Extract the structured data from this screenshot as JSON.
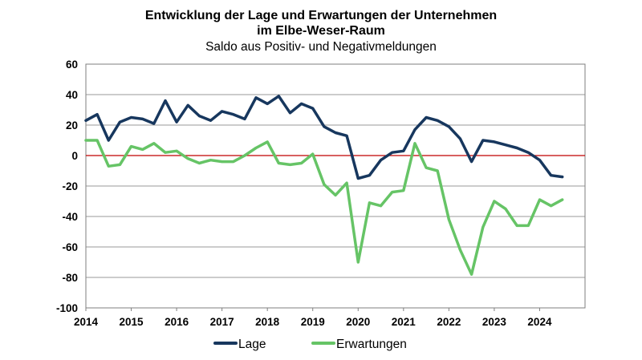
{
  "chart_data": {
    "type": "line",
    "title": "Entwicklung der Lage und Erwartungen der Unternehmen",
    "title_line2": "im Elbe-Weser-Raum",
    "subtitle": "Saldo aus Positiv- und Negativmeldungen",
    "xlabel": "",
    "ylabel": "",
    "ylim": [
      -100,
      60
    ],
    "xlim": [
      2014,
      2025
    ],
    "yticks": [
      "60",
      "40",
      "20",
      "0",
      "-20",
      "-40",
      "-60",
      "-80",
      "-100"
    ],
    "xticks": [
      "2014",
      "2015",
      "2016",
      "2017",
      "2018",
      "2019",
      "2020",
      "2021",
      "2022",
      "2023",
      "2024"
    ],
    "grid": true,
    "legend_position": "bottom",
    "x": [
      2014.0,
      2014.25,
      2014.5,
      2014.75,
      2015.0,
      2015.25,
      2015.5,
      2015.75,
      2016.0,
      2016.25,
      2016.5,
      2016.75,
      2017.0,
      2017.25,
      2017.5,
      2017.75,
      2018.0,
      2018.25,
      2018.5,
      2018.75,
      2019.0,
      2019.25,
      2019.5,
      2019.75,
      2020.0,
      2020.25,
      2020.5,
      2020.75,
      2021.0,
      2021.25,
      2021.5,
      2021.75,
      2022.0,
      2022.25,
      2022.5,
      2022.75,
      2023.0,
      2023.25,
      2023.5,
      2023.75,
      2024.0,
      2024.25,
      2024.5
    ],
    "series": [
      {
        "name": "Lage",
        "color": "#17375e",
        "values": [
          23,
          27,
          10,
          22,
          25,
          24,
          21,
          36,
          22,
          33,
          26,
          23,
          29,
          27,
          24,
          38,
          34,
          39,
          28,
          34,
          31,
          19,
          15,
          13,
          -15,
          -13,
          -3,
          2,
          3,
          17,
          25,
          23,
          19,
          11,
          -4,
          10,
          9,
          7,
          5,
          2,
          -3,
          -13,
          -14
        ]
      },
      {
        "name": "Erwartungen",
        "color": "#66c466",
        "values": [
          10,
          10,
          -7,
          -6,
          6,
          4,
          8,
          2,
          3,
          -2,
          -5,
          -3,
          -4,
          -4,
          0,
          5,
          9,
          -5,
          -6,
          -5,
          1,
          -19,
          -26,
          -18,
          -70,
          -31,
          -33,
          -24,
          -23,
          8,
          -8,
          -10,
          -42,
          -62,
          -78,
          -47,
          -30,
          -35,
          -46,
          -46,
          -29,
          -33,
          -29
        ]
      }
    ],
    "zero_line_color": "#c00000"
  }
}
